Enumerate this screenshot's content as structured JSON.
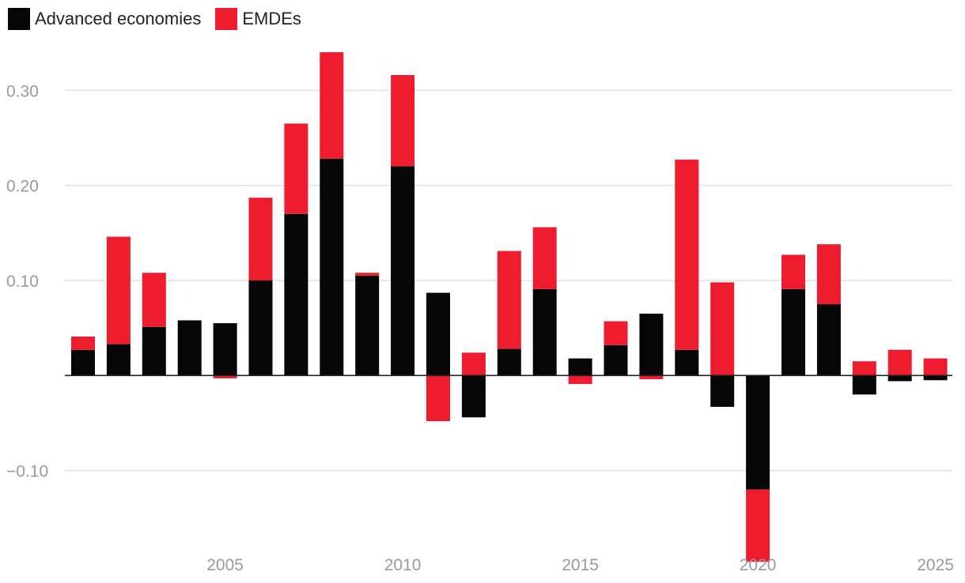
{
  "legend": {
    "items": [
      {
        "label": "Advanced economies",
        "color": "#060606"
      },
      {
        "label": "EMDEs",
        "color": "#ed1c2e"
      }
    ]
  },
  "chart_data": {
    "type": "bar",
    "stacked": true,
    "title": "",
    "xlabel": "",
    "ylabel": "",
    "categories": [
      2001,
      2002,
      2003,
      2004,
      2005,
      2006,
      2007,
      2008,
      2009,
      2010,
      2011,
      2012,
      2013,
      2014,
      2015,
      2016,
      2017,
      2018,
      2019,
      2020,
      2021,
      2022,
      2023,
      2024,
      2025
    ],
    "series": [
      {
        "name": "Advanced economies",
        "color": "#060606",
        "values": [
          0.027,
          0.033,
          0.051,
          0.058,
          0.055,
          0.1,
          0.17,
          0.228,
          0.105,
          0.22,
          0.087,
          -0.044,
          0.028,
          0.091,
          0.018,
          0.032,
          0.065,
          0.027,
          -0.033,
          -0.12,
          0.091,
          0.075,
          -0.02,
          -0.006,
          -0.005
        ]
      },
      {
        "name": "EMDEs",
        "color": "#ed1c2e",
        "values": [
          0.014,
          0.113,
          0.057,
          0.0,
          -0.003,
          0.087,
          0.095,
          0.112,
          0.003,
          0.096,
          -0.048,
          0.024,
          0.103,
          0.065,
          -0.009,
          0.025,
          -0.004,
          0.2,
          0.098,
          -0.076,
          0.036,
          0.063,
          0.015,
          0.027,
          0.018
        ]
      }
    ],
    "ylim": [
      -0.195,
      0.38
    ],
    "y_ticks": [
      {
        "value": -0.1,
        "label": "−0.10"
      },
      {
        "value": 0.1,
        "label": "0.10"
      },
      {
        "value": 0.2,
        "label": "0.20"
      },
      {
        "value": 0.3,
        "label": "0.30"
      }
    ],
    "x_ticks": [
      {
        "value": 2005,
        "label": "2005"
      },
      {
        "value": 2010,
        "label": "2010"
      },
      {
        "value": 2015,
        "label": "2015"
      },
      {
        "value": 2020,
        "label": "2020"
      },
      {
        "value": 2025,
        "label": "2025"
      }
    ],
    "grid": true,
    "legend_position": "top-left"
  }
}
